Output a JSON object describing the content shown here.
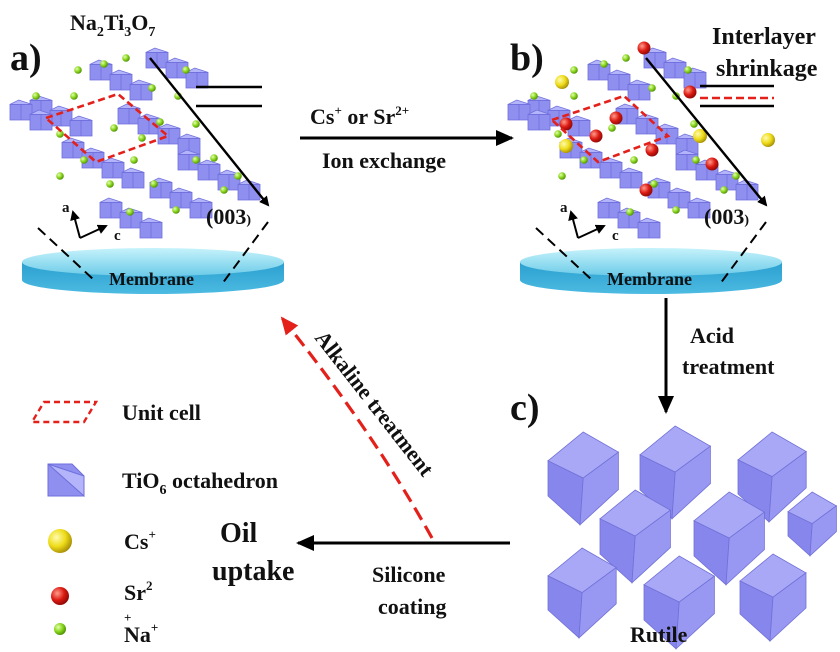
{
  "panel_a": {
    "letter": "a)",
    "formula": {
      "main": "Na",
      "sub1": "2",
      "mid": "Ti",
      "sub2": "3",
      "tail": "O",
      "sub3": "7"
    },
    "axis_a": "a",
    "axis_c": "c",
    "plane": "(003",
    "plane_close": ")",
    "support": "Membrane"
  },
  "panel_b": {
    "letter": "b)",
    "note_line1": "Interlayer",
    "note_line2": "shrinkage",
    "axis_a": "a",
    "axis_c": "c",
    "plane": "(003",
    "plane_close": ")",
    "support": "Membrane"
  },
  "panel_c": {
    "letter": "c)",
    "caption": "Rutile"
  },
  "arrow_ab": {
    "cs": "Cs",
    "cs_sup": "+",
    "or": "or",
    "sr": "Sr",
    "sr_sup": "2+",
    "line2": "Ion exchange"
  },
  "arrow_bc": {
    "line1": "Acid",
    "line2": "treatment"
  },
  "arrow_c_out": {
    "line1": "Silicone",
    "line2": "coating"
  },
  "arrow_back": {
    "label": "Alkaline treatment"
  },
  "outcome": {
    "line1": "Oil",
    "line2": "uptake"
  },
  "legend": {
    "unit_cell": "Unit cell",
    "octa_main": "TiO",
    "octa_sub": "6",
    "octa_tail": "octahedron",
    "cs": "Cs",
    "cs_sup": "+",
    "sr": "Sr",
    "sr_sup": "2",
    "sr_plus": "+",
    "na": "Na",
    "na_sup": "+"
  },
  "colors": {
    "octahedron": "#8f8ff0",
    "octahedron_dark": "#6f6fdc",
    "octahedron_light": "#b4b4fa",
    "membrane": "#3bb3dc",
    "membrane_top": "#9ce6f6",
    "cs": "#f2e21a",
    "sr": "#e01a12",
    "na": "#8ed81c",
    "unit_cell": "#e4201b",
    "arrow": "#000000"
  }
}
